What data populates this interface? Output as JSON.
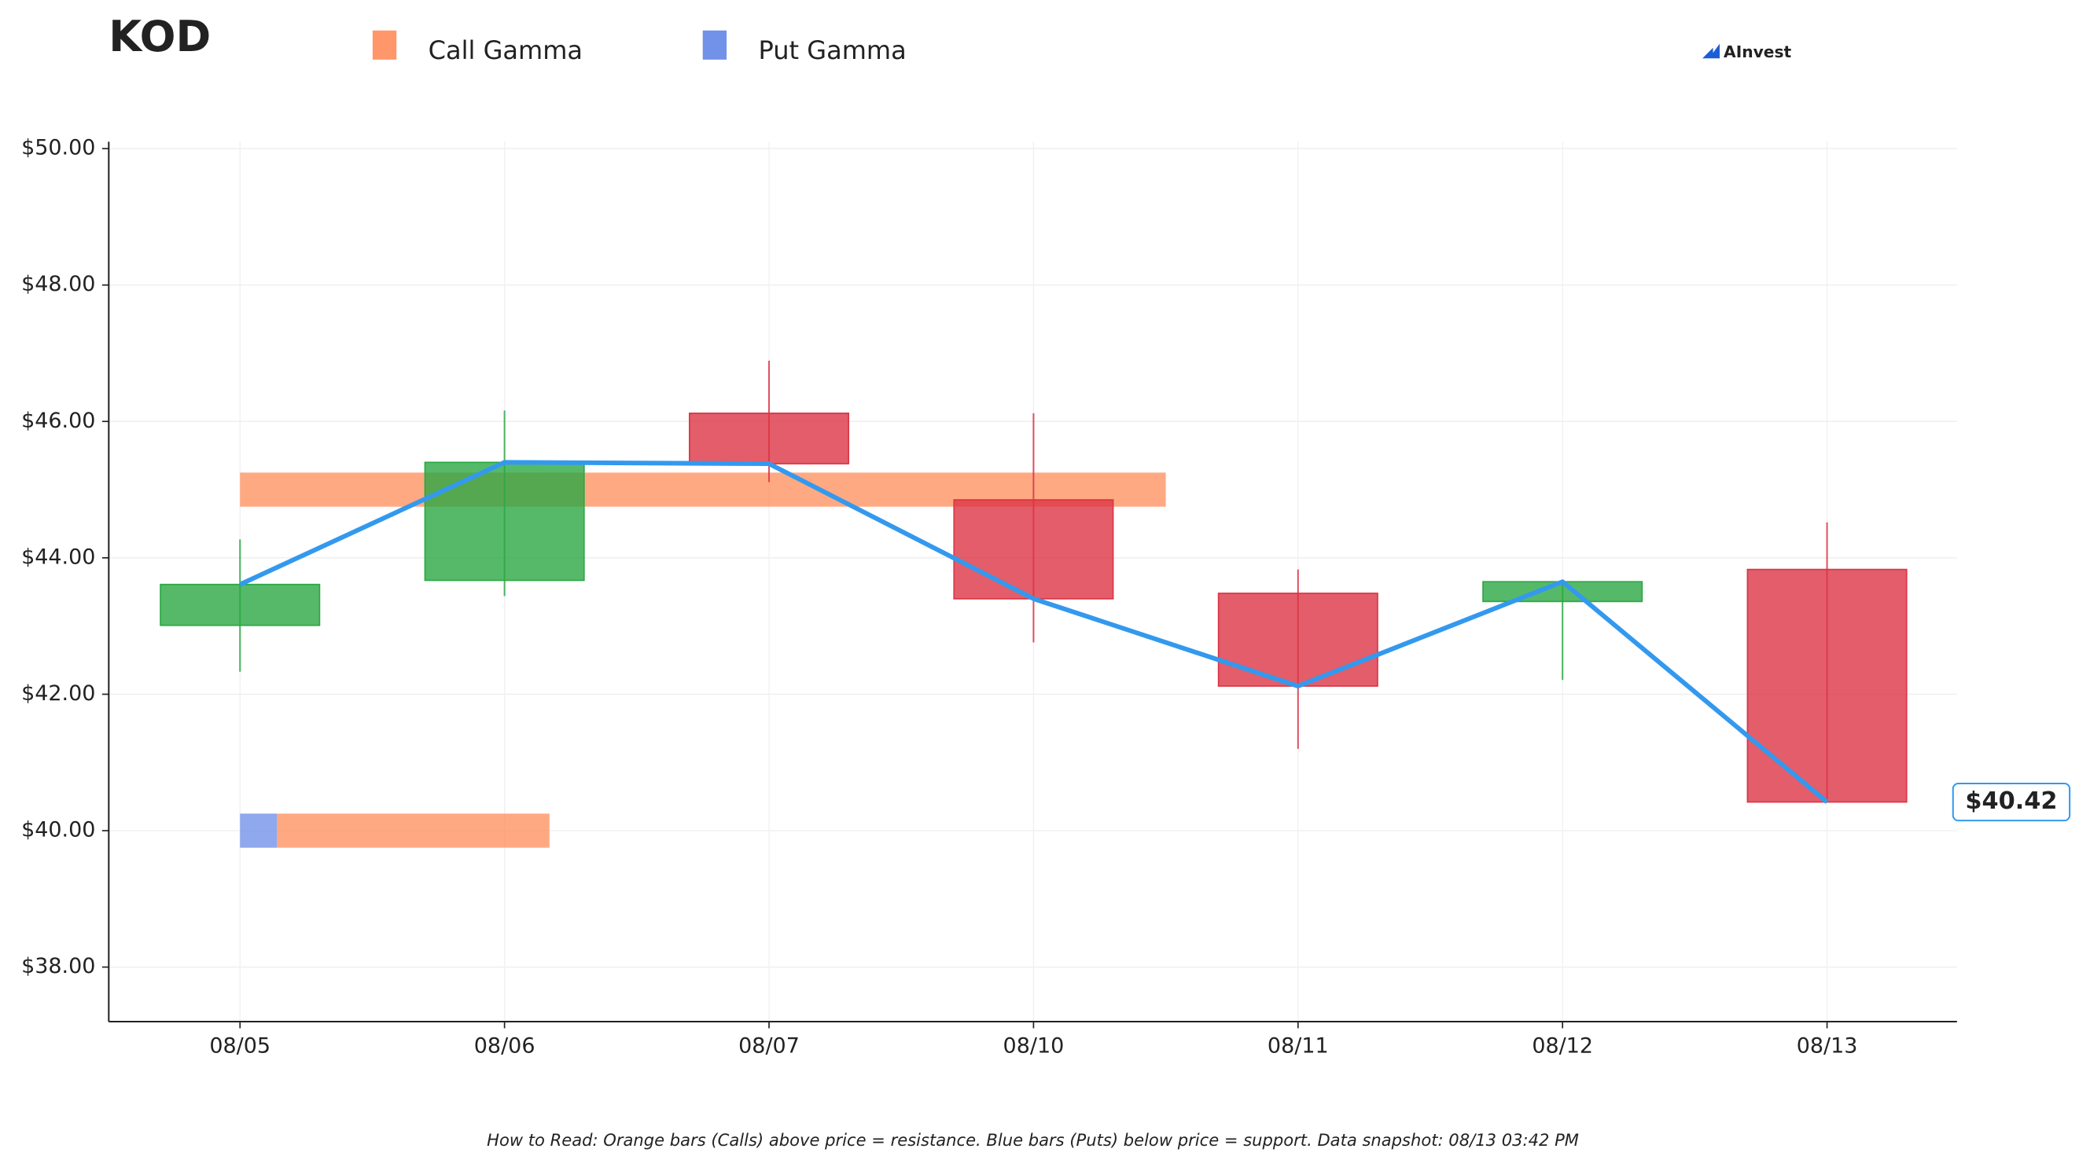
{
  "chart_data": {
    "type": "candlestick",
    "title": "KOD",
    "brand": "AInvest",
    "footnote": "How to Read: Orange bars (Calls) above price = resistance. Blue bars (Puts) below price = support. Data snapshot: 08/13 03:42 PM",
    "categories": [
      "08/05",
      "08/06",
      "08/07",
      "08/10",
      "08/11",
      "08/12",
      "08/13"
    ],
    "open": [
      43.01,
      43.67,
      46.12,
      44.85,
      43.48,
      43.36,
      43.83
    ],
    "high": [
      44.27,
      46.16,
      46.89,
      46.12,
      43.83,
      43.65,
      44.52
    ],
    "low": [
      42.33,
      43.44,
      45.11,
      42.76,
      41.2,
      42.21,
      40.42
    ],
    "close": [
      43.61,
      45.4,
      45.38,
      43.4,
      42.12,
      43.65,
      40.42
    ],
    "up_color": "#2ca843",
    "down_color": "#dc3545",
    "line_color": "#3399ee",
    "last_label": {
      "value": 40.42,
      "label": "$40.42"
    },
    "legend": [
      {
        "name": "Call Gamma",
        "color": "#ff8c5a"
      },
      {
        "name": "Put Gamma",
        "color": "#6a8be8"
      }
    ],
    "gamma_levels": [
      {
        "price": 45.0,
        "put": 0,
        "call": 3.5
      },
      {
        "price": 40.0,
        "put": 0.14,
        "call": 1.03
      }
    ],
    "ylim": [
      37.2,
      50.1
    ],
    "yticks": [
      {
        "value": 38,
        "label": "$38.00"
      },
      {
        "value": 40,
        "label": "$40.00"
      },
      {
        "value": 42,
        "label": "$42.00"
      },
      {
        "value": 44,
        "label": "$44.00"
      },
      {
        "value": 46,
        "label": "$46.00"
      },
      {
        "value": 48,
        "label": "$48.00"
      },
      {
        "value": 50,
        "label": "$50.00"
      }
    ],
    "grid": true
  }
}
